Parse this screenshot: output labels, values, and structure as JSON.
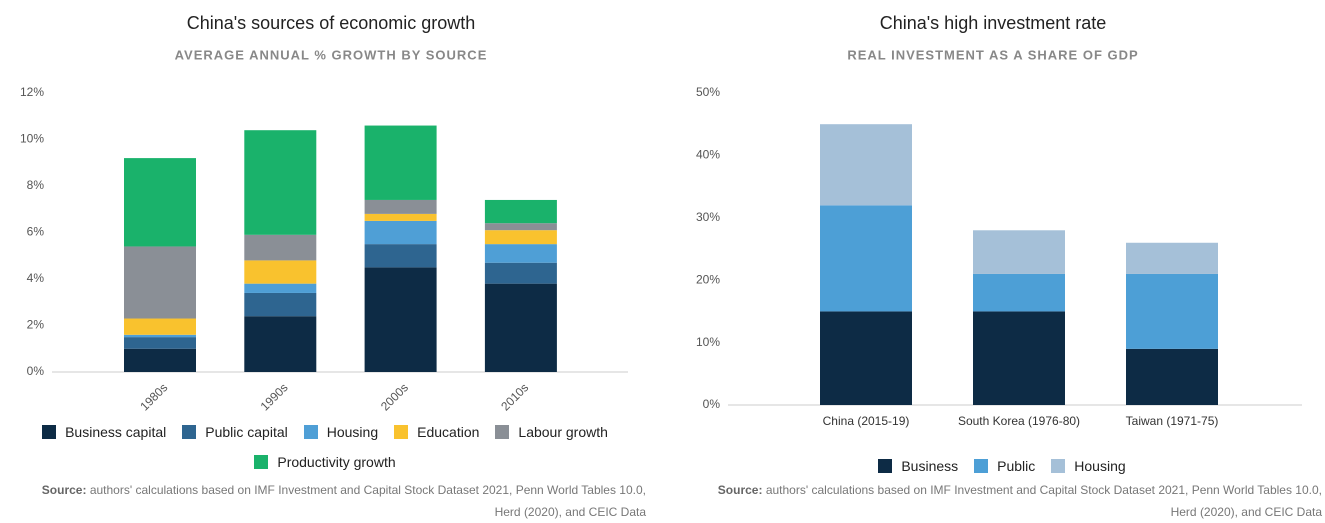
{
  "chart_data": [
    {
      "type": "bar",
      "stacked": true,
      "title": "China's sources of economic growth",
      "subtitle": "AVERAGE ANNUAL % GROWTH BY SOURCE",
      "categories": [
        "1980s",
        "1990s",
        "2000s",
        "2010s"
      ],
      "series": [
        {
          "name": "Business capital",
          "color": "#0d2b45",
          "values": [
            1.0,
            2.4,
            4.5,
            3.8
          ]
        },
        {
          "name": "Public capital",
          "color": "#2e6590",
          "values": [
            0.5,
            1.0,
            1.0,
            0.9
          ]
        },
        {
          "name": "Housing",
          "color": "#4f9fd6",
          "values": [
            0.1,
            0.4,
            1.0,
            0.8
          ]
        },
        {
          "name": "Education",
          "color": "#f9c22e",
          "values": [
            0.7,
            1.0,
            0.3,
            0.6
          ]
        },
        {
          "name": "Labour growth",
          "color": "#8a8f96",
          "values": [
            3.1,
            1.1,
            0.6,
            0.3
          ]
        },
        {
          "name": "Productivity growth",
          "color": "#1ab26b",
          "values": [
            3.8,
            4.5,
            3.2,
            1.0
          ]
        }
      ],
      "ylim": [
        0,
        12
      ],
      "yticks": [
        {
          "value": 0,
          "label": "0%"
        },
        {
          "value": 2,
          "label": "2%"
        },
        {
          "value": 4,
          "label": "4%"
        },
        {
          "value": 6,
          "label": "6%"
        },
        {
          "value": 8,
          "label": "8%"
        },
        {
          "value": 10,
          "label": "10%"
        },
        {
          "value": 12,
          "label": "12%"
        }
      ],
      "grid": false,
      "rotate_x_labels": true,
      "source_label": "Source:",
      "source": "authors' calculations based on IMF Investment and Capital Stock Dataset 2021, Penn World Tables 10.0, Herd (2020), and CEIC Data"
    },
    {
      "type": "bar",
      "stacked": true,
      "title": "China's high investment rate",
      "subtitle": "REAL INVESTMENT AS A SHARE OF GDP",
      "categories": [
        "China (2015-19)",
        "South Korea (1976-80)",
        "Taiwan (1971-75)"
      ],
      "series": [
        {
          "name": "Business",
          "color": "#0d2b45",
          "values": [
            15,
            15,
            9
          ]
        },
        {
          "name": "Public",
          "color": "#4d9fd6",
          "values": [
            17,
            6,
            12
          ]
        },
        {
          "name": "Housing",
          "color": "#a5c0d8",
          "values": [
            13,
            7,
            5
          ]
        }
      ],
      "ylim": [
        0,
        50
      ],
      "yticks": [
        {
          "value": 0,
          "label": "0%"
        },
        {
          "value": 10,
          "label": "10%"
        },
        {
          "value": 20,
          "label": "20%"
        },
        {
          "value": 30,
          "label": "30%"
        },
        {
          "value": 40,
          "label": "40%"
        },
        {
          "value": 50,
          "label": "50%"
        }
      ],
      "grid": false,
      "rotate_x_labels": false,
      "source_label": "Source:",
      "source": "authors' calculations based on IMF Investment and Capital Stock Dataset 2021, Penn World Tables 10.0, Herd (2020), and CEIC Data"
    }
  ]
}
